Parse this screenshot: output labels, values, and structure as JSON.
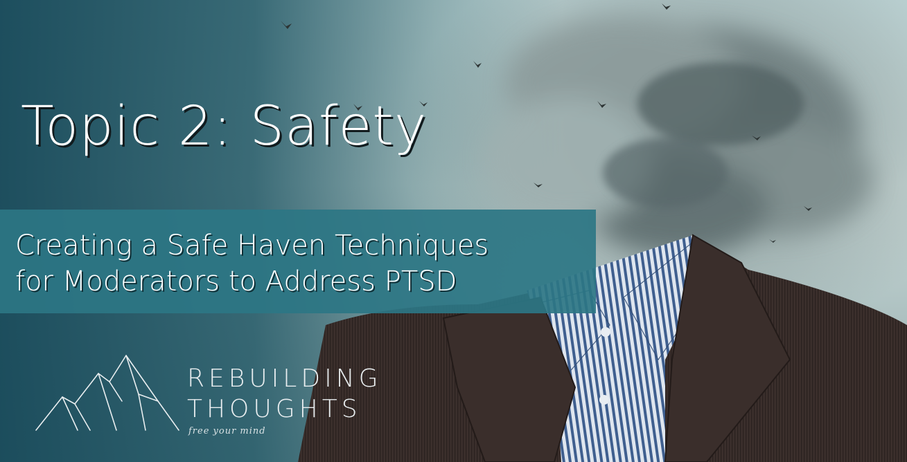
{
  "slide": {
    "title": "Topic 2: Safety",
    "subtitle_lines": [
      "Creating a Safe Haven Techniques",
      "for Moderators to Address PTSD"
    ]
  },
  "brand": {
    "name_lines": [
      "REBUILDING",
      "THOUGHTS"
    ],
    "tagline": "free your mind"
  },
  "colors": {
    "band": "#2d7684",
    "background_left": "#184a5a",
    "title_text": "#ffffff",
    "title_shadow": "#111a1d"
  },
  "icons": {
    "logo": "mountain-outline-icon"
  }
}
